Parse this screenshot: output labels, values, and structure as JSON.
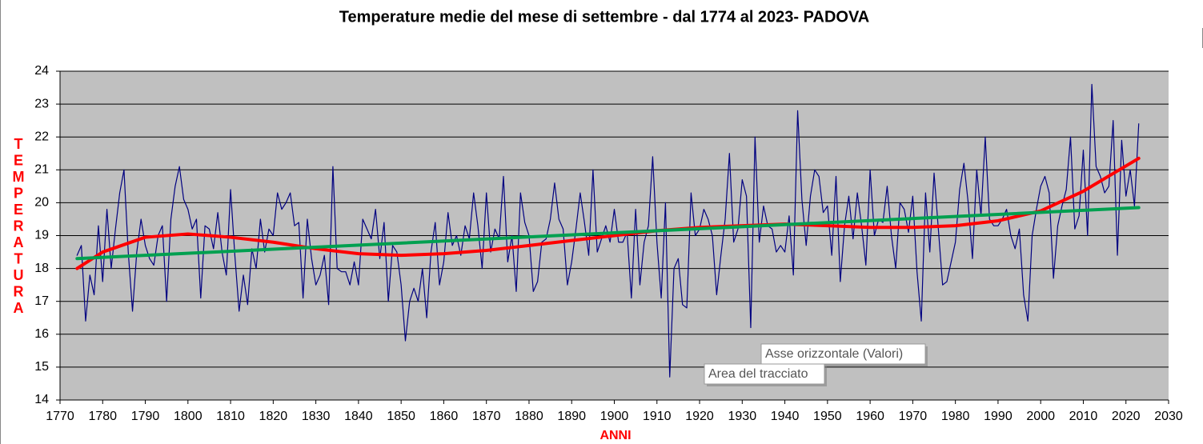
{
  "chart_data": {
    "type": "line",
    "title": "Temperature medie del mese di settembre  - dal 1774 al 2023- PADOVA",
    "x_label": "ANNI",
    "y_label": "TEMPERATURA",
    "x": [
      1774,
      1775,
      1776,
      1777,
      1778,
      1779,
      1780,
      1781,
      1782,
      1783,
      1784,
      1785,
      1786,
      1787,
      1788,
      1789,
      1790,
      1791,
      1792,
      1793,
      1794,
      1795,
      1796,
      1797,
      1798,
      1799,
      1800,
      1801,
      1802,
      1803,
      1804,
      1805,
      1806,
      1807,
      1808,
      1809,
      1810,
      1811,
      1812,
      1813,
      1814,
      1815,
      1816,
      1817,
      1818,
      1819,
      1820,
      1821,
      1822,
      1823,
      1824,
      1825,
      1826,
      1827,
      1828,
      1829,
      1830,
      1831,
      1832,
      1833,
      1834,
      1835,
      1836,
      1837,
      1838,
      1839,
      1840,
      1841,
      1842,
      1843,
      1844,
      1845,
      1846,
      1847,
      1848,
      1849,
      1850,
      1851,
      1852,
      1853,
      1854,
      1855,
      1856,
      1857,
      1858,
      1859,
      1860,
      1861,
      1862,
      1863,
      1864,
      1865,
      1866,
      1867,
      1868,
      1869,
      1870,
      1871,
      1872,
      1873,
      1874,
      1875,
      1876,
      1877,
      1878,
      1879,
      1880,
      1881,
      1882,
      1883,
      1884,
      1885,
      1886,
      1887,
      1888,
      1889,
      1890,
      1891,
      1892,
      1893,
      1894,
      1895,
      1896,
      1897,
      1898,
      1899,
      1900,
      1901,
      1902,
      1903,
      1904,
      1905,
      1906,
      1907,
      1908,
      1909,
      1910,
      1911,
      1912,
      1913,
      1914,
      1915,
      1916,
      1917,
      1918,
      1919,
      1920,
      1921,
      1922,
      1923,
      1924,
      1925,
      1926,
      1927,
      1928,
      1929,
      1930,
      1931,
      1932,
      1933,
      1934,
      1935,
      1936,
      1937,
      1938,
      1939,
      1940,
      1941,
      1942,
      1943,
      1944,
      1945,
      1946,
      1947,
      1948,
      1949,
      1950,
      1951,
      1952,
      1953,
      1954,
      1955,
      1956,
      1957,
      1958,
      1959,
      1960,
      1961,
      1962,
      1963,
      1964,
      1965,
      1966,
      1967,
      1968,
      1969,
      1970,
      1971,
      1972,
      1973,
      1974,
      1975,
      1976,
      1977,
      1978,
      1979,
      1980,
      1981,
      1982,
      1983,
      1984,
      1985,
      1986,
      1987,
      1988,
      1989,
      1990,
      1991,
      1992,
      1993,
      1994,
      1995,
      1996,
      1997,
      1998,
      1999,
      2000,
      2001,
      2002,
      2003,
      2004,
      2005,
      2006,
      2007,
      2008,
      2009,
      2010,
      2011,
      2012,
      2013,
      2014,
      2015,
      2016,
      2017,
      2018,
      2019,
      2020,
      2021,
      2022,
      2023
    ],
    "series": [
      {
        "color": "#000080",
        "values": [
          18.4,
          18.7,
          16.4,
          17.8,
          17.2,
          19.3,
          17.6,
          19.8,
          18.0,
          19.2,
          20.3,
          21.0,
          18.5,
          16.7,
          18.5,
          19.5,
          18.7,
          18.3,
          18.1,
          19.0,
          19.3,
          17.0,
          19.5,
          20.5,
          21.1,
          20.1,
          19.8,
          19.2,
          19.5,
          17.1,
          19.3,
          19.2,
          18.6,
          19.7,
          18.5,
          17.8,
          20.4,
          18.4,
          16.7,
          17.8,
          16.9,
          18.6,
          18.0,
          19.5,
          18.5,
          19.2,
          19.0,
          20.3,
          19.8,
          20.0,
          20.3,
          19.3,
          19.4,
          17.1,
          19.5,
          18.3,
          17.5,
          17.8,
          18.4,
          16.9,
          21.1,
          18.0,
          17.9,
          17.9,
          17.5,
          18.2,
          17.5,
          19.5,
          19.2,
          18.9,
          19.8,
          18.3,
          19.4,
          17.0,
          18.7,
          18.5,
          17.5,
          15.8,
          17.0,
          17.4,
          17.0,
          18.0,
          16.5,
          18.5,
          19.4,
          17.5,
          18.2,
          19.7,
          18.7,
          19.0,
          18.4,
          19.3,
          18.9,
          20.3,
          19.3,
          18.0,
          20.3,
          18.5,
          19.2,
          18.9,
          20.8,
          18.2,
          19.0,
          17.3,
          20.3,
          19.4,
          19.0,
          17.3,
          17.6,
          18.8,
          18.9,
          19.5,
          20.6,
          19.5,
          19.2,
          17.5,
          18.2,
          19.2,
          20.3,
          19.4,
          18.4,
          21.0,
          18.5,
          18.9,
          19.3,
          18.8,
          19.8,
          18.8,
          18.8,
          19.1,
          17.1,
          19.8,
          17.5,
          18.8,
          19.3,
          21.4,
          18.8,
          17.1,
          20.0,
          14.7,
          18.0,
          18.3,
          16.9,
          16.8,
          20.3,
          19.0,
          19.2,
          19.8,
          19.5,
          19.0,
          17.2,
          18.4,
          19.5,
          21.5,
          18.8,
          19.2,
          20.7,
          20.2,
          16.2,
          22.0,
          18.8,
          19.9,
          19.3,
          19.2,
          18.5,
          18.7,
          18.5,
          19.6,
          17.8,
          22.8,
          20.1,
          18.7,
          20.2,
          21.0,
          20.8,
          19.7,
          19.9,
          18.4,
          20.8,
          17.6,
          19.3,
          20.2,
          18.9,
          20.3,
          19.3,
          18.1,
          21.0,
          19.0,
          19.5,
          19.4,
          20.5,
          19.0,
          18.0,
          20.0,
          19.8,
          19.1,
          20.2,
          17.9,
          16.4,
          20.3,
          18.5,
          20.9,
          19.2,
          17.5,
          17.6,
          18.2,
          18.8,
          20.4,
          21.2,
          20.0,
          18.3,
          21.0,
          19.6,
          22.0,
          19.5,
          19.3,
          19.3,
          19.5,
          19.8,
          19.0,
          18.6,
          19.2,
          17.2,
          16.4,
          19.0,
          19.8,
          20.5,
          20.8,
          20.3,
          17.7,
          19.3,
          19.9,
          20.4,
          22.0,
          19.2,
          19.6,
          21.6,
          19.0,
          23.6,
          21.1,
          20.8,
          20.3,
          20.5,
          22.5,
          18.4,
          21.9,
          20.2,
          21.0,
          19.9,
          22.4
        ]
      }
    ],
    "trendlines": [
      {
        "color": "#ff0000",
        "x": [
          1774,
          1780,
          1790,
          1800,
          1810,
          1820,
          1830,
          1840,
          1850,
          1860,
          1870,
          1880,
          1890,
          1900,
          1910,
          1920,
          1930,
          1940,
          1950,
          1960,
          1970,
          1980,
          1990,
          2000,
          2010,
          2023
        ],
        "values": [
          18.0,
          18.5,
          18.95,
          19.05,
          18.95,
          18.8,
          18.6,
          18.45,
          18.4,
          18.45,
          18.55,
          18.7,
          18.85,
          19.0,
          19.15,
          19.25,
          19.3,
          19.35,
          19.3,
          19.25,
          19.25,
          19.3,
          19.45,
          19.75,
          20.35,
          21.35
        ]
      },
      {
        "color": "#00a050",
        "x": [
          1774,
          2023
        ],
        "values": [
          18.3,
          19.85
        ]
      }
    ],
    "xlim": [
      1770,
      2030
    ],
    "ylim": [
      14,
      24
    ],
    "xticks": [
      1770,
      1780,
      1790,
      1800,
      1810,
      1820,
      1830,
      1840,
      1850,
      1860,
      1870,
      1880,
      1890,
      1900,
      1910,
      1920,
      1930,
      1940,
      1950,
      1960,
      1970,
      1980,
      1990,
      2000,
      2010,
      2020,
      2030
    ],
    "yticks": [
      14,
      15,
      16,
      17,
      18,
      19,
      20,
      21,
      22,
      23,
      24
    ],
    "grid": true,
    "background": "#c0c0c0",
    "tooltips": [
      "Asse orizzontale (Valori)",
      "Area del tracciato"
    ]
  }
}
